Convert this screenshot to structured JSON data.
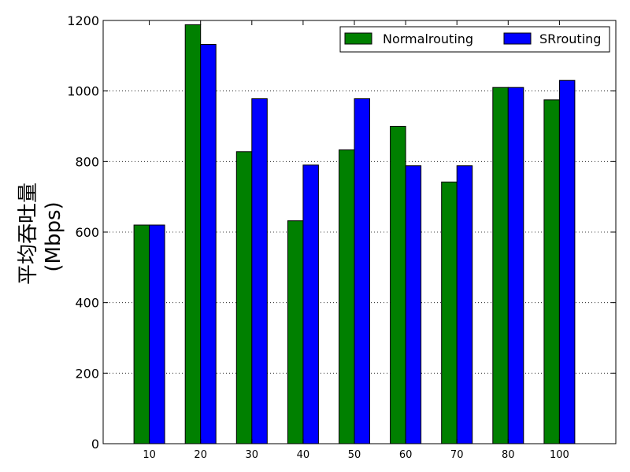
{
  "chart_data": {
    "type": "bar",
    "title": "",
    "xlabel": "",
    "ylabel_line1": "平均吞吐量",
    "ylabel_line2": "(Mbps)",
    "categories": [
      "10",
      "20",
      "30",
      "40",
      "50",
      "60",
      "70",
      "80",
      "100"
    ],
    "series": [
      {
        "name": "Normalrouting",
        "color": "#008000",
        "values": [
          620,
          1188,
          828,
          632,
          833,
          900,
          742,
          1010,
          975
        ]
      },
      {
        "name": "SRrouting",
        "color": "#0000ff",
        "values": [
          620,
          1132,
          978,
          790,
          978,
          788,
          788,
          1010,
          1030
        ]
      }
    ],
    "ylim": [
      0,
      1200
    ],
    "yticks": [
      "0",
      "200",
      "400",
      "600",
      "800",
      "1000",
      "1200"
    ],
    "grid": "horizontal dotted",
    "legend_position": "top-right"
  }
}
